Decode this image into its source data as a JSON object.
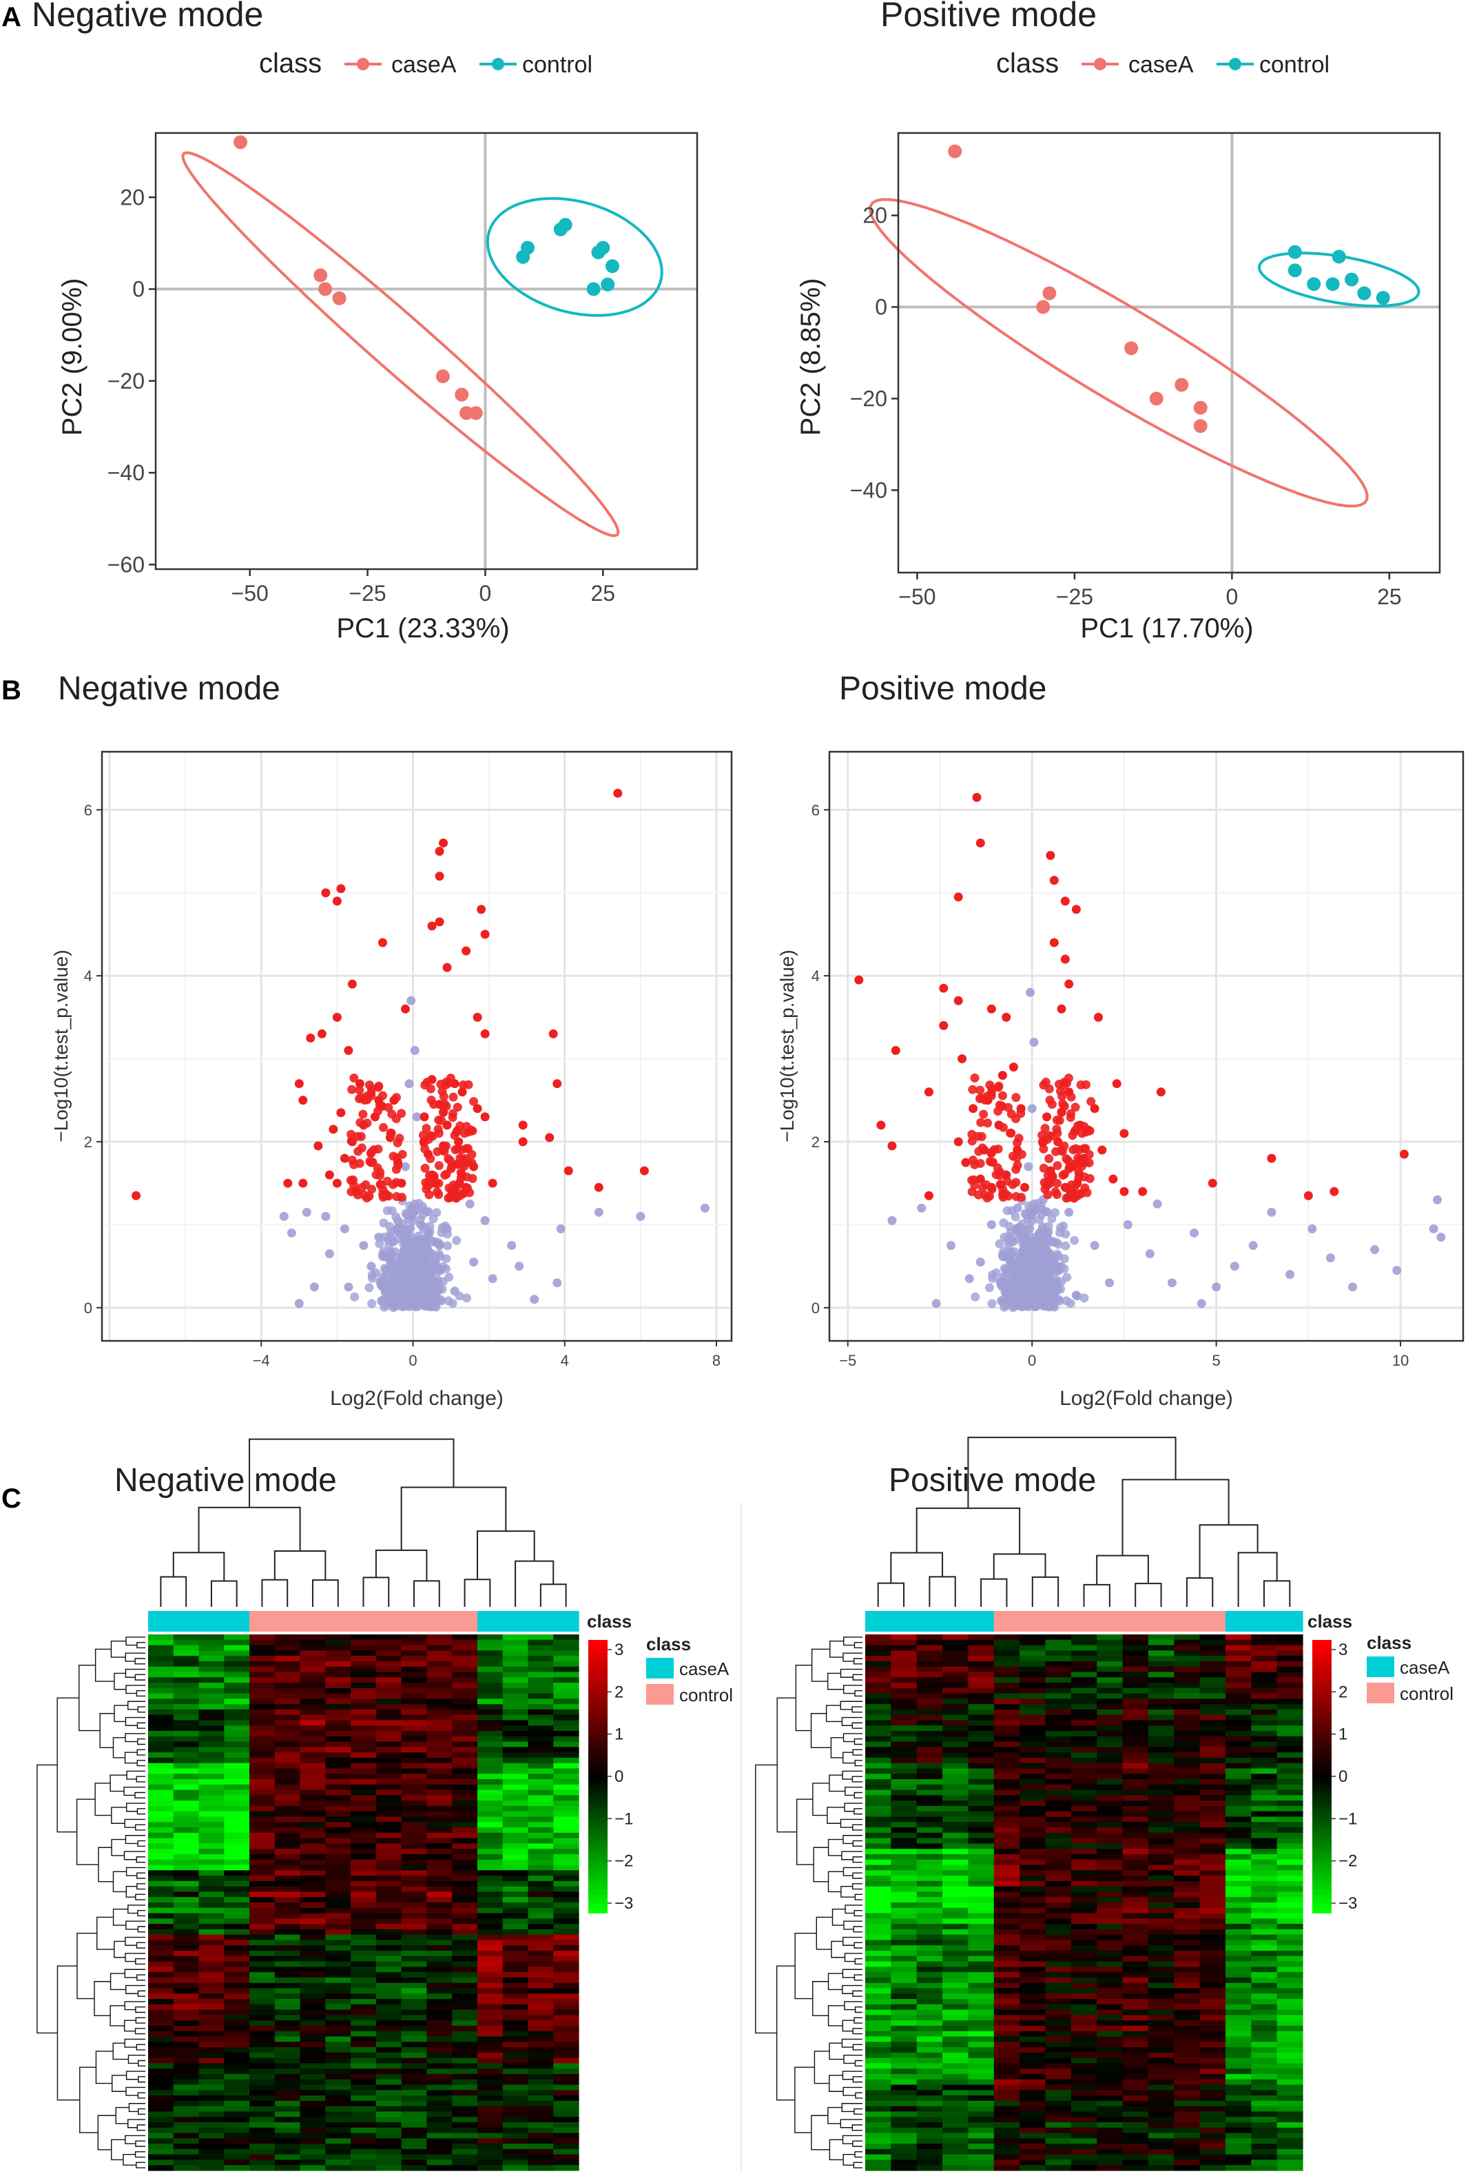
{
  "figure": {
    "panel_labels": [
      "A",
      "B",
      "C"
    ]
  },
  "colors": {
    "caseA_point": "#f0746e",
    "control_point": "#14b8c0",
    "volcano_sig": "#ee2020",
    "volcano_ns": "#9f9fd6",
    "heat_high": "#ff0000",
    "heat_mid": "#000000",
    "heat_low": "#00ff00",
    "heat_caseA_bar": "#00cfd8",
    "heat_control_bar": "#fb9a93"
  },
  "chart_data": [
    {
      "type": "scatter",
      "panel": "A",
      "title": "Negative mode",
      "xlabel": "PC1 (23.33%)",
      "ylabel": "PC2 (9.00%)",
      "xlim": [
        -70,
        45
      ],
      "ylim": [
        -61,
        34
      ],
      "xticks": [
        -50,
        -25,
        0,
        25
      ],
      "xtick_labels": [
        "−50",
        "−25",
        "0",
        "25"
      ],
      "yticks": [
        20,
        0,
        -20,
        -40,
        -60
      ],
      "ytick_labels": [
        "20",
        "0",
        "−20",
        "−40",
        "−60"
      ],
      "legend_title": "class",
      "legend": [
        "caseA",
        "control"
      ],
      "series": [
        {
          "name": "caseA",
          "points": [
            [
              -52,
              32
            ],
            [
              -35,
              3
            ],
            [
              -34,
              0
            ],
            [
              -31,
              -2
            ],
            [
              -9,
              -19
            ],
            [
              -5,
              -23
            ],
            [
              -4,
              -27
            ],
            [
              -2,
              -27
            ]
          ]
        },
        {
          "name": "control",
          "points": [
            [
              8,
              7
            ],
            [
              9,
              9
            ],
            [
              16,
              13
            ],
            [
              17,
              14
            ],
            [
              23,
              0
            ],
            [
              24,
              8
            ],
            [
              25,
              9
            ],
            [
              26,
              1
            ],
            [
              27,
              5
            ]
          ]
        }
      ],
      "ellipses": [
        {
          "name": "caseA",
          "cx": -18,
          "cy": -12,
          "a": 62,
          "b": 6,
          "angle_deg": -42
        },
        {
          "name": "control",
          "cx": 19,
          "cy": 7,
          "a": 19,
          "b": 12,
          "angle_deg": -17
        }
      ]
    },
    {
      "type": "scatter",
      "panel": "A",
      "title": "Positive mode",
      "xlabel": "PC1 (17.70%)",
      "ylabel": "PC2 (8.85%)",
      "xlim": [
        -53,
        33
      ],
      "ylim": [
        -58,
        38
      ],
      "xticks": [
        -50,
        -25,
        0,
        25
      ],
      "xtick_labels": [
        "−50",
        "−25",
        "0",
        "25"
      ],
      "yticks": [
        20,
        0,
        -20,
        -40
      ],
      "ytick_labels": [
        "20",
        "0",
        "−20",
        "−40"
      ],
      "legend_title": "class",
      "legend": [
        "caseA",
        "control"
      ],
      "series": [
        {
          "name": "caseA",
          "points": [
            [
              -44,
              34
            ],
            [
              -29,
              3
            ],
            [
              -30,
              0
            ],
            [
              -16,
              -9
            ],
            [
              -12,
              -20
            ],
            [
              -8,
              -17
            ],
            [
              -5,
              -22
            ],
            [
              -5,
              -26
            ]
          ]
        },
        {
          "name": "control",
          "points": [
            [
              10,
              12
            ],
            [
              10,
              8
            ],
            [
              13,
              5
            ],
            [
              16,
              5
            ],
            [
              17,
              11
            ],
            [
              19,
              6
            ],
            [
              21,
              3
            ],
            [
              24,
              2
            ]
          ]
        }
      ],
      "ellipses": [
        {
          "name": "caseA",
          "cx": -18,
          "cy": -10,
          "a": 51,
          "b": 9,
          "angle_deg": -40
        },
        {
          "name": "control",
          "cx": 17,
          "cy": 6,
          "a": 13,
          "b": 5,
          "angle_deg": -14
        }
      ]
    },
    {
      "type": "scatter",
      "panel": "B",
      "title": "Negative mode",
      "xlabel": "Log2(Fold change)",
      "ylabel": "−Log10(t.test_p.value)",
      "xlim": [
        -8.2,
        8.4
      ],
      "ylim": [
        -0.4,
        6.7
      ],
      "xticks": [
        -4,
        0,
        4,
        8
      ],
      "xtick_labels": [
        "−4",
        "0",
        "4",
        "8"
      ],
      "yticks": [
        0,
        2,
        4,
        6
      ],
      "ytick_labels": [
        "0",
        "2",
        "4",
        "6"
      ],
      "significant_points": [
        [
          5.4,
          6.2
        ],
        [
          0.8,
          5.6
        ],
        [
          0.7,
          5.5
        ],
        [
          0.7,
          5.2
        ],
        [
          -1.9,
          5.05
        ],
        [
          -2.3,
          5.0
        ],
        [
          -2.0,
          4.9
        ],
        [
          0.7,
          4.65
        ],
        [
          0.5,
          4.6
        ],
        [
          1.8,
          4.8
        ],
        [
          1.9,
          4.5
        ],
        [
          -0.8,
          4.4
        ],
        [
          1.4,
          4.3
        ],
        [
          0.9,
          4.1
        ],
        [
          -1.6,
          3.9
        ],
        [
          -0.2,
          3.6
        ],
        [
          -2.0,
          3.5
        ],
        [
          1.7,
          3.5
        ],
        [
          3.7,
          3.3
        ],
        [
          1.9,
          3.3
        ],
        [
          -2.4,
          3.3
        ],
        [
          -2.7,
          3.25
        ],
        [
          -1.7,
          3.1
        ],
        [
          3.8,
          2.7
        ],
        [
          -3.0,
          2.7
        ],
        [
          -2.9,
          2.5
        ],
        [
          2.9,
          2.2
        ],
        [
          3.6,
          2.05
        ],
        [
          2.9,
          2.0
        ],
        [
          -3.3,
          1.5
        ],
        [
          -2.9,
          1.5
        ],
        [
          -7.3,
          1.35
        ],
        [
          4.1,
          1.65
        ],
        [
          6.1,
          1.65
        ],
        [
          4.9,
          1.45
        ],
        [
          -2.5,
          1.95
        ],
        [
          -1.4,
          2.7
        ],
        [
          -0.9,
          2.5
        ],
        [
          -1.3,
          2.2
        ],
        [
          -1.1,
          1.75
        ],
        [
          -0.6,
          2.05
        ],
        [
          -0.3,
          1.5
        ],
        [
          -1.8,
          1.8
        ],
        [
          -2.1,
          2.15
        ],
        [
          -0.7,
          1.35
        ],
        [
          -1.5,
          1.4
        ],
        [
          -2.2,
          1.6
        ],
        [
          -1.9,
          2.35
        ],
        [
          -0.5,
          2.5
        ],
        [
          0.5,
          2.75
        ],
        [
          0.7,
          2.45
        ],
        [
          0.9,
          2.2
        ],
        [
          1.2,
          2.0
        ],
        [
          1.6,
          1.7
        ],
        [
          0.6,
          1.5
        ],
        [
          1.0,
          1.35
        ],
        [
          1.3,
          2.6
        ],
        [
          0.4,
          1.85
        ],
        [
          1.9,
          2.3
        ],
        [
          2.1,
          1.5
        ],
        [
          0.8,
          1.95
        ],
        [
          1.4,
          1.45
        ],
        [
          0.3,
          2.3
        ],
        [
          -1.0,
          2.3
        ],
        [
          -1.6,
          2.0
        ],
        [
          -0.4,
          1.75
        ],
        [
          -2.0,
          1.5
        ],
        [
          1.1,
          2.7
        ],
        [
          1.7,
          2.4
        ],
        [
          0.5,
          1.6
        ]
      ],
      "non_significant_points": [
        [
          7.7,
          1.2
        ],
        [
          6.0,
          1.1
        ],
        [
          4.9,
          1.15
        ],
        [
          3.9,
          0.95
        ],
        [
          3.8,
          0.3
        ],
        [
          3.2,
          0.1
        ],
        [
          2.6,
          0.75
        ],
        [
          2.1,
          0.35
        ],
        [
          1.6,
          0.55
        ],
        [
          1.1,
          0.2
        ],
        [
          0.6,
          0.05
        ],
        [
          0.3,
          0.6
        ],
        [
          -0.3,
          0.4
        ],
        [
          -0.6,
          0.15
        ],
        [
          -1.1,
          0.5
        ],
        [
          -1.7,
          0.25
        ],
        [
          -2.2,
          0.65
        ],
        [
          -2.6,
          0.25
        ],
        [
          -3.0,
          0.05
        ],
        [
          -3.2,
          0.9
        ],
        [
          -3.4,
          1.1
        ],
        [
          -2.8,
          1.15
        ],
        [
          -1.8,
          0.95
        ],
        [
          -0.9,
          0.85
        ],
        [
          0.0,
          1.2
        ],
        [
          0.9,
          0.95
        ],
        [
          1.5,
          1.25
        ],
        [
          -0.2,
          1.7
        ],
        [
          0.1,
          2.3
        ],
        [
          -0.1,
          2.7
        ],
        [
          0.05,
          3.1
        ],
        [
          -0.05,
          3.7
        ],
        [
          0.2,
          1.0
        ],
        [
          -0.4,
          1.05
        ],
        [
          0.4,
          0.3
        ],
        [
          -1.3,
          0.75
        ],
        [
          1.9,
          1.05
        ],
        [
          2.8,
          0.5
        ],
        [
          -2.3,
          1.1
        ],
        [
          0.7,
          0.75
        ]
      ]
    },
    {
      "type": "scatter",
      "panel": "B",
      "title": "Positive mode",
      "xlabel": "Log2(Fold change)",
      "ylabel": "−Log10(t.test_p.value)",
      "xlim": [
        -5.5,
        11.7
      ],
      "ylim": [
        -0.4,
        6.7
      ],
      "xticks": [
        -5,
        0,
        5,
        10
      ],
      "xtick_labels": [
        "−5",
        "0",
        "5",
        "10"
      ],
      "yticks": [
        0,
        2,
        4,
        6
      ],
      "ytick_labels": [
        "0",
        "2",
        "4",
        "6"
      ],
      "significant_points": [
        [
          -1.5,
          6.15
        ],
        [
          -1.4,
          5.6
        ],
        [
          -2.0,
          4.95
        ],
        [
          0.5,
          5.45
        ],
        [
          0.6,
          5.15
        ],
        [
          0.9,
          4.9
        ],
        [
          1.2,
          4.8
        ],
        [
          0.6,
          4.4
        ],
        [
          0.9,
          4.2
        ],
        [
          -4.7,
          3.95
        ],
        [
          -2.4,
          3.85
        ],
        [
          -1.1,
          3.6
        ],
        [
          1.0,
          3.9
        ],
        [
          -2.0,
          3.7
        ],
        [
          -0.7,
          3.5
        ],
        [
          0.8,
          3.6
        ],
        [
          1.8,
          3.5
        ],
        [
          -3.7,
          3.1
        ],
        [
          -2.4,
          3.4
        ],
        [
          -1.9,
          3.0
        ],
        [
          2.3,
          2.7
        ],
        [
          -2.8,
          2.6
        ],
        [
          -4.1,
          2.2
        ],
        [
          -3.8,
          1.95
        ],
        [
          3.5,
          2.6
        ],
        [
          2.5,
          2.1
        ],
        [
          2.2,
          1.55
        ],
        [
          2.5,
          1.4
        ],
        [
          -2.8,
          1.35
        ],
        [
          3.0,
          1.4
        ],
        [
          4.9,
          1.5
        ],
        [
          6.5,
          1.8
        ],
        [
          7.5,
          1.35
        ],
        [
          8.2,
          1.4
        ],
        [
          10.1,
          1.85
        ],
        [
          -1.2,
          2.5
        ],
        [
          -0.9,
          2.2
        ],
        [
          -0.5,
          2.9
        ],
        [
          -0.3,
          2.4
        ],
        [
          -1.3,
          1.9
        ],
        [
          -0.7,
          1.6
        ],
        [
          -1.8,
          1.75
        ],
        [
          -1.1,
          1.45
        ],
        [
          -0.4,
          1.9
        ],
        [
          0.4,
          2.3
        ],
        [
          0.7,
          2.0
        ],
        [
          1.0,
          2.6
        ],
        [
          1.3,
          2.2
        ],
        [
          0.5,
          1.65
        ],
        [
          0.9,
          1.45
        ],
        [
          1.4,
          1.8
        ],
        [
          1.7,
          2.4
        ],
        [
          -1.6,
          2.4
        ],
        [
          -0.8,
          2.8
        ],
        [
          0.3,
          2.0
        ],
        [
          1.1,
          1.7
        ],
        [
          -2.0,
          2.0
        ],
        [
          -1.4,
          1.55
        ],
        [
          1.9,
          1.9
        ],
        [
          -0.2,
          1.45
        ]
      ],
      "non_significant_points": [
        [
          11.0,
          1.3
        ],
        [
          10.9,
          0.95
        ],
        [
          11.1,
          0.85
        ],
        [
          9.9,
          0.45
        ],
        [
          9.3,
          0.7
        ],
        [
          8.1,
          0.6
        ],
        [
          7.6,
          0.95
        ],
        [
          6.5,
          1.15
        ],
        [
          6.0,
          0.75
        ],
        [
          5.5,
          0.5
        ],
        [
          5.0,
          0.25
        ],
        [
          4.4,
          0.9
        ],
        [
          3.8,
          0.3
        ],
        [
          3.2,
          0.65
        ],
        [
          2.6,
          1.0
        ],
        [
          2.1,
          0.3
        ],
        [
          1.7,
          0.75
        ],
        [
          1.2,
          0.15
        ],
        [
          0.7,
          0.5
        ],
        [
          0.2,
          0.9
        ],
        [
          -0.2,
          0.25
        ],
        [
          -0.6,
          0.6
        ],
        [
          -1.1,
          1.0
        ],
        [
          -1.7,
          0.35
        ],
        [
          -2.2,
          0.75
        ],
        [
          -2.6,
          0.05
        ],
        [
          -3.0,
          1.2
        ],
        [
          -3.8,
          1.05
        ],
        [
          -0.1,
          1.7
        ],
        [
          0.0,
          2.4
        ],
        [
          0.05,
          3.2
        ],
        [
          -0.05,
          3.8
        ],
        [
          0.3,
          1.3
        ],
        [
          -0.4,
          1.2
        ],
        [
          4.6,
          0.05
        ],
        [
          8.7,
          0.25
        ],
        [
          7.0,
          0.4
        ],
        [
          3.4,
          1.25
        ],
        [
          -1.4,
          0.55
        ],
        [
          1.0,
          1.15
        ]
      ]
    },
    {
      "type": "heatmap",
      "panel": "C",
      "title": "Negative mode",
      "annotation_title": "class",
      "legend_title": "class",
      "legend": [
        "caseA",
        "control"
      ],
      "scale_ticks": [
        "3",
        "2",
        "1",
        "0",
        "−1",
        "−2",
        "−3"
      ],
      "scale_range": [
        -3,
        3
      ],
      "column_groups": [
        "caseA",
        "caseA",
        "caseA",
        "caseA",
        "control",
        "control",
        "control",
        "control",
        "control",
        "control",
        "control",
        "control",
        "control",
        "caseA",
        "caseA",
        "caseA",
        "caseA"
      ],
      "row_blocks": [
        {
          "rows": 14,
          "caseA": -1.4,
          "control": 0.7
        },
        {
          "rows": 10,
          "caseA": -0.6,
          "control": 0.9
        },
        {
          "rows": 20,
          "caseA": -2.4,
          "control": 0.5
        },
        {
          "rows": 12,
          "caseA": -0.8,
          "control": 0.8
        },
        {
          "rows": 14,
          "caseA": 1.0,
          "control": -0.8
        },
        {
          "rows": 10,
          "caseA": 0.6,
          "control": -0.5
        },
        {
          "rows": 20,
          "caseA": -0.3,
          "control": -0.6
        }
      ]
    },
    {
      "type": "heatmap",
      "panel": "C",
      "title": "Positive mode",
      "annotation_title": "class",
      "legend_title": "class",
      "legend": [
        "caseA",
        "control"
      ],
      "scale_ticks": [
        "3",
        "2",
        "1",
        "0",
        "−1",
        "−2",
        "−3"
      ],
      "scale_range": [
        -3,
        3
      ],
      "column_groups": [
        "caseA",
        "caseA",
        "caseA",
        "caseA",
        "caseA",
        "control",
        "control",
        "control",
        "control",
        "control",
        "control",
        "control",
        "control",
        "control",
        "caseA",
        "caseA",
        "caseA"
      ],
      "row_blocks": [
        {
          "rows": 12,
          "caseA": 0.9,
          "control": -0.3
        },
        {
          "rows": 12,
          "caseA": -0.2,
          "control": 0.2
        },
        {
          "rows": 16,
          "caseA": -0.9,
          "control": 0.4
        },
        {
          "rows": 14,
          "caseA": -2.2,
          "control": 0.8
        },
        {
          "rows": 16,
          "caseA": -1.6,
          "control": 0.5
        },
        {
          "rows": 14,
          "caseA": -1.9,
          "control": 0.4
        },
        {
          "rows": 16,
          "caseA": -1.0,
          "control": 0.0
        }
      ]
    }
  ]
}
